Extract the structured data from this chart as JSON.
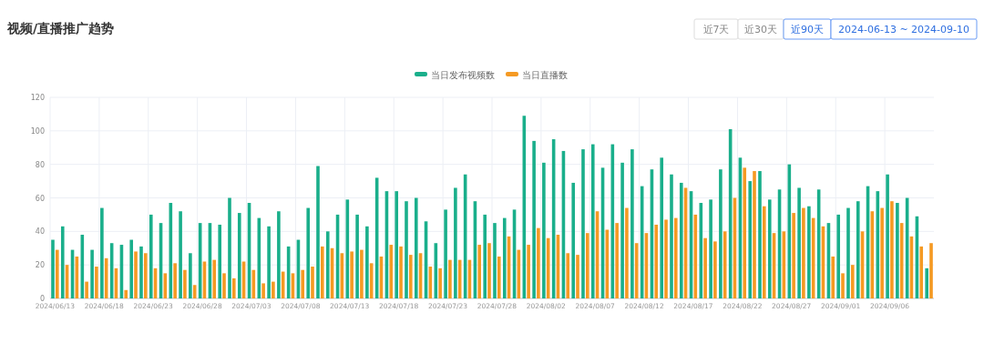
{
  "chart_data": {
    "type": "bar",
    "title": "视频/直播推广趋势",
    "annotations": [
      "近7天",
      "近30天",
      "近90天",
      "2024-06-13 ~ 2024-09-10"
    ],
    "categories": [
      "2024/06/13",
      null,
      null,
      null,
      null,
      "2024/06/18",
      null,
      null,
      null,
      null,
      "2024/06/23",
      null,
      null,
      null,
      null,
      "2024/06/28",
      null,
      null,
      null,
      null,
      "2024/07/03",
      null,
      null,
      null,
      null,
      "2024/07/08",
      null,
      null,
      null,
      null,
      "2024/07/13",
      null,
      null,
      null,
      null,
      "2024/07/18",
      null,
      null,
      null,
      null,
      "2024/07/23",
      null,
      null,
      null,
      null,
      "2024/07/28",
      null,
      null,
      null,
      null,
      "2024/08/02",
      null,
      null,
      null,
      null,
      "2024/08/07",
      null,
      null,
      null,
      null,
      "2024/08/12",
      null,
      null,
      null,
      null,
      "2024/08/17",
      null,
      null,
      null,
      null,
      "2024/08/22",
      null,
      null,
      null,
      null,
      "2024/08/27",
      null,
      null,
      null,
      null,
      "2024/09/01",
      null,
      null,
      null,
      null,
      "2024/09/06",
      null,
      null,
      null,
      null
    ],
    "series": [
      {
        "name": "当日发布视频数",
        "color": "#1aaf8b",
        "values": [
          35,
          43,
          29,
          38,
          29,
          54,
          33,
          32,
          35,
          31,
          50,
          45,
          57,
          52,
          27,
          45,
          45,
          44,
          60,
          51,
          57,
          48,
          43,
          52,
          31,
          35,
          54,
          79,
          40,
          50,
          59,
          50,
          43,
          72,
          64,
          64,
          58,
          60,
          46,
          33,
          53,
          66,
          74,
          58,
          50,
          45,
          48,
          53,
          109,
          94,
          81,
          95,
          88,
          69,
          89,
          92,
          78,
          92,
          81,
          89,
          67,
          77,
          84,
          74,
          69,
          64,
          57,
          59,
          77,
          101,
          84,
          70,
          76,
          59,
          65,
          80,
          66,
          55,
          65,
          45,
          50,
          54,
          58,
          67,
          64,
          74,
          57,
          60,
          49,
          18
        ]
      },
      {
        "name": "当日直播数",
        "color": "#f59a23",
        "values": [
          29,
          20,
          25,
          10,
          19,
          24,
          18,
          5,
          28,
          27,
          18,
          15,
          21,
          17,
          8,
          22,
          23,
          15,
          12,
          22,
          17,
          9,
          10,
          16,
          15,
          17,
          19,
          31,
          30,
          27,
          28,
          29,
          21,
          25,
          32,
          31,
          26,
          27,
          19,
          18,
          23,
          23,
          23,
          32,
          33,
          25,
          37,
          29,
          32,
          42,
          36,
          38,
          27,
          26,
          39,
          52,
          41,
          45,
          54,
          33,
          39,
          44,
          47,
          48,
          66,
          50,
          36,
          34,
          40,
          60,
          78,
          76,
          55,
          39,
          40,
          51,
          54,
          48,
          43,
          25,
          15,
          20,
          40,
          52,
          54,
          58,
          45,
          37,
          31,
          33
        ]
      }
    ],
    "ylim": [
      0,
      120
    ],
    "yticks": [
      0,
      20,
      40,
      60,
      80,
      100,
      120
    ],
    "grid": true,
    "legend": "top"
  }
}
